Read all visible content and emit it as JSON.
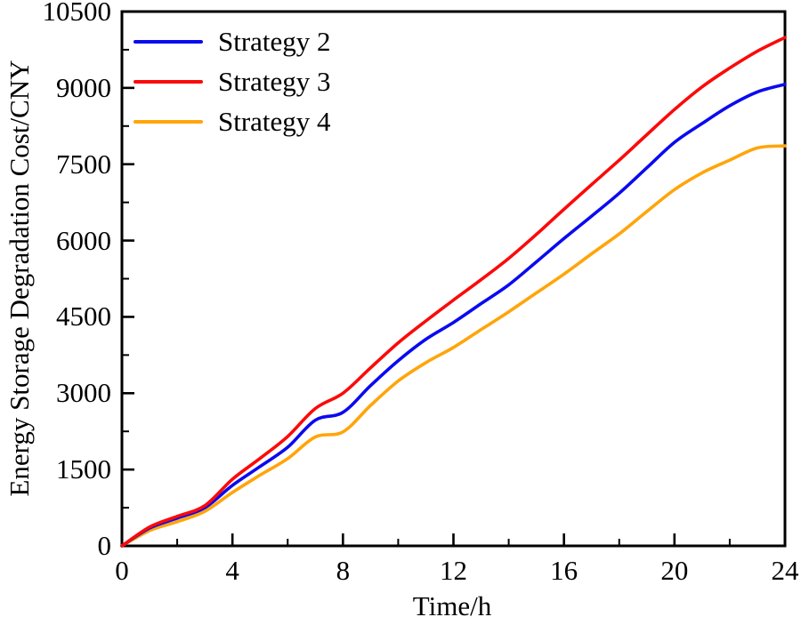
{
  "chart_data": {
    "type": "line",
    "title": "",
    "xlabel": "Time/h",
    "ylabel": "Energy Storage Degradation Cost/CNY",
    "xlim": [
      0,
      24
    ],
    "ylim": [
      0,
      10500
    ],
    "grid": false,
    "legend_position": "top-left-inside",
    "x_major_ticks": [
      0,
      4,
      8,
      12,
      16,
      20,
      24
    ],
    "x_minor_ticks": [
      2,
      6,
      10,
      14,
      18,
      22
    ],
    "y_major_ticks": [
      0,
      1500,
      3000,
      4500,
      6000,
      7500,
      9000,
      10500
    ],
    "y_minor_ticks": [
      750,
      2250,
      3750,
      5250,
      6750,
      8250,
      9750
    ],
    "x": [
      0,
      1,
      2,
      3,
      4,
      5,
      6,
      7,
      8,
      9,
      10,
      11,
      12,
      13,
      14,
      15,
      16,
      17,
      18,
      19,
      20,
      21,
      22,
      23,
      24
    ],
    "series": [
      {
        "name": "Strategy 2",
        "color": "#0a0af0",
        "values": [
          0,
          350,
          545,
          750,
          1190,
          1560,
          1940,
          2470,
          2625,
          3150,
          3640,
          4060,
          4390,
          4760,
          5130,
          5580,
          6040,
          6480,
          6930,
          7430,
          7930,
          8300,
          8650,
          8920,
          9070
        ]
      },
      {
        "name": "Strategy 3",
        "color": "#fb0a0a",
        "values": [
          0,
          370,
          580,
          790,
          1310,
          1720,
          2150,
          2700,
          3000,
          3500,
          3990,
          4420,
          4830,
          5230,
          5650,
          6120,
          6615,
          7100,
          7580,
          8080,
          8575,
          9020,
          9390,
          9720,
          9990
        ]
      },
      {
        "name": "Strategy 4",
        "color": "#ffa50a",
        "values": [
          0,
          300,
          475,
          680,
          1050,
          1390,
          1715,
          2140,
          2240,
          2760,
          3240,
          3600,
          3900,
          4250,
          4600,
          4970,
          5340,
          5740,
          6130,
          6570,
          7000,
          7330,
          7580,
          7820,
          7860
        ]
      }
    ],
    "axis_color": "#000000"
  }
}
